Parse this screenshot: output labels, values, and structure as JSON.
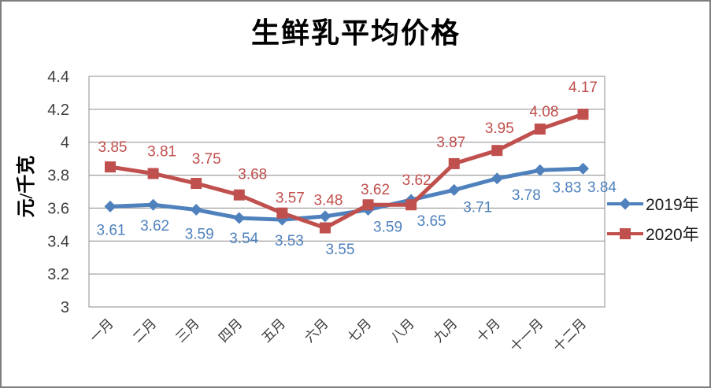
{
  "title": "生鲜乳平均价格",
  "y_axis_title": "元/千克",
  "colors": {
    "series_2019": "#4F81BD",
    "series_2020": "#C0504D",
    "gridline": "#8c8c8c",
    "frame_border": "#7f7f7f"
  },
  "legend": [
    {
      "label": "2019年",
      "color": "#4F81BD",
      "marker": "diamond"
    },
    {
      "label": "2020年",
      "color": "#C0504D",
      "marker": "square"
    }
  ],
  "chart_data": {
    "type": "line",
    "title": "生鲜乳平均价格",
    "ylabel": "元/千克",
    "xlabel": "",
    "categories": [
      "一月",
      "二月",
      "三月",
      "四月",
      "五月",
      "六月",
      "七月",
      "八月",
      "九月",
      "十月",
      "十一月",
      "十二月"
    ],
    "series": [
      {
        "name": "2019年",
        "color": "#4F81BD",
        "marker": "diamond",
        "values": [
          3.61,
          3.62,
          3.59,
          3.54,
          3.53,
          3.55,
          3.59,
          3.65,
          3.71,
          3.78,
          3.83,
          3.84
        ]
      },
      {
        "name": "2020年",
        "color": "#C0504D",
        "marker": "square",
        "values": [
          3.85,
          3.81,
          3.75,
          3.68,
          3.57,
          3.48,
          3.62,
          3.62,
          3.87,
          3.95,
          4.08,
          4.17
        ]
      }
    ],
    "ylim": [
      3,
      4.4
    ],
    "ytick_step": 0.2,
    "yticks": [
      "4.4",
      "4.2",
      "4",
      "3.8",
      "3.6",
      "3.4",
      "3.2",
      "3"
    ],
    "grid": true,
    "legend_position": "right",
    "data_labels": true
  }
}
